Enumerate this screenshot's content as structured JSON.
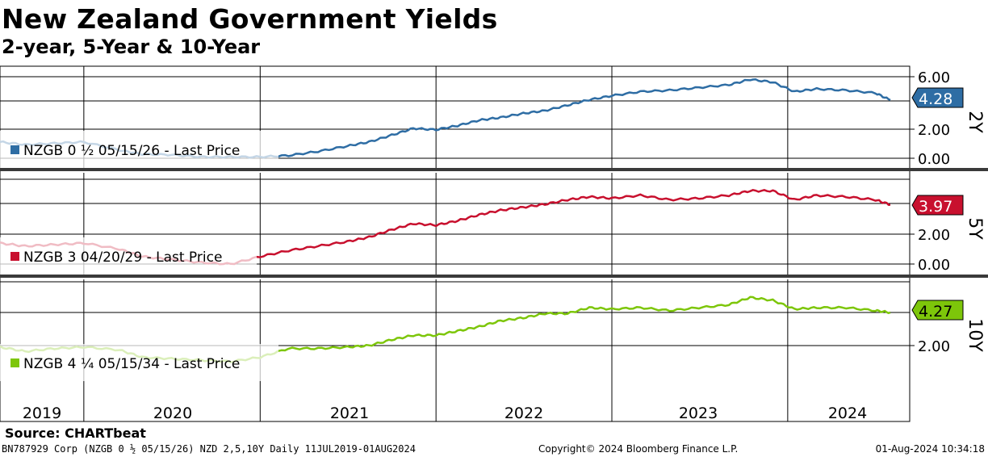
{
  "title": "New Zealand Government Yields",
  "subtitle": "2-year, 5-Year & 10-Year",
  "source": "Source: CHARTbeat",
  "footer": {
    "left": "BN787929 Corp (NZGB 0 ½ 05/15/26) NZD 2,5,10Y  Daily 11JUL2019-01AUG2024",
    "middle": "Copyright© 2024 Bloomberg Finance L.P.",
    "right": "01-Aug-2024 10:34:18"
  },
  "colors": {
    "y2": "#2e6da4",
    "y5": "#c8102e",
    "y10": "#7dc60a"
  },
  "chart_data": {
    "type": "line",
    "x_axis": {
      "labels": [
        "2019",
        "2020",
        "2021",
        "2022",
        "2023",
        "2024"
      ],
      "range": [
        "2019-07-11",
        "2024-08-01"
      ]
    },
    "panels": [
      {
        "id": "y2",
        "label": "2Y",
        "series": {
          "name": "NZGB 0 ½ 05/15/26 - Last Price",
          "last_value": "4.28",
          "x": [
            "2019-07-11",
            "2019-09-01",
            "2019-11-01",
            "2020-01-01",
            "2020-03-15",
            "2020-05-01",
            "2020-07-01",
            "2020-09-01",
            "2020-11-01",
            "2021-01-01",
            "2021-03-01",
            "2021-05-01",
            "2021-07-01",
            "2021-08-15",
            "2021-10-01",
            "2021-11-15",
            "2022-01-01",
            "2022-02-15",
            "2022-04-01",
            "2022-05-15",
            "2022-07-01",
            "2022-08-15",
            "2022-10-01",
            "2022-11-15",
            "2023-01-01",
            "2023-03-01",
            "2023-05-01",
            "2023-07-01",
            "2023-09-01",
            "2023-10-15",
            "2023-12-01",
            "2024-01-15",
            "2024-03-01",
            "2024-05-01",
            "2024-07-01",
            "2024-08-01"
          ],
          "y": [
            1.2,
            1.0,
            1.1,
            1.2,
            0.6,
            0.3,
            0.25,
            0.1,
            0.1,
            0.1,
            0.2,
            0.5,
            0.9,
            1.2,
            1.7,
            2.2,
            2.1,
            2.4,
            2.8,
            3.0,
            3.3,
            3.5,
            3.9,
            4.3,
            4.6,
            4.9,
            5.0,
            5.2,
            5.4,
            5.8,
            5.6,
            4.9,
            5.1,
            5.0,
            4.8,
            4.28
          ]
        },
        "ticks": [
          "6.00",
          "2.00",
          "0.00"
        ],
        "ylim": [
          -0.5,
          6.8
        ]
      },
      {
        "id": "y5",
        "label": "5Y",
        "series": {
          "name": "NZGB 3 04/20/29 - Last Price",
          "last_value": "3.97",
          "x": [
            "2019-07-11",
            "2019-09-01",
            "2019-11-01",
            "2020-01-01",
            "2020-03-15",
            "2020-05-01",
            "2020-07-01",
            "2020-09-01",
            "2020-11-01",
            "2021-01-01",
            "2021-03-01",
            "2021-05-01",
            "2021-07-01",
            "2021-08-15",
            "2021-10-01",
            "2021-11-15",
            "2022-01-01",
            "2022-02-15",
            "2022-04-01",
            "2022-05-15",
            "2022-07-01",
            "2022-08-15",
            "2022-10-01",
            "2022-11-15",
            "2023-01-01",
            "2023-03-01",
            "2023-05-01",
            "2023-07-01",
            "2023-09-01",
            "2023-10-15",
            "2023-12-01",
            "2024-01-15",
            "2024-03-01",
            "2024-05-01",
            "2024-07-01",
            "2024-08-01"
          ],
          "y": [
            1.4,
            1.2,
            1.3,
            1.4,
            1.0,
            0.5,
            0.3,
            0.1,
            0.0,
            0.5,
            0.9,
            1.2,
            1.5,
            1.8,
            2.3,
            2.7,
            2.6,
            2.9,
            3.3,
            3.6,
            3.8,
            4.0,
            4.3,
            4.5,
            4.4,
            4.6,
            4.3,
            4.4,
            4.6,
            4.9,
            4.9,
            4.3,
            4.6,
            4.5,
            4.3,
            3.97
          ]
        },
        "ticks": [
          "2.00",
          "0.00"
        ],
        "ylim": [
          -0.5,
          6.6
        ]
      },
      {
        "id": "y10",
        "label": "10Y",
        "series": {
          "name": "NZGB 4 ¼ 05/15/34 - Last Price",
          "last_value": "4.27",
          "x": [
            "2019-07-11",
            "2019-09-01",
            "2019-11-01",
            "2020-01-01",
            "2020-03-15",
            "2020-05-01",
            "2020-07-01",
            "2020-09-01",
            "2020-11-01",
            "2021-01-01",
            "2021-03-01",
            "2021-05-01",
            "2021-07-01",
            "2021-08-15",
            "2021-10-01",
            "2021-11-15",
            "2022-01-01",
            "2022-02-15",
            "2022-04-01",
            "2022-05-15",
            "2022-07-01",
            "2022-08-15",
            "2022-10-01",
            "2022-11-15",
            "2023-01-01",
            "2023-03-01",
            "2023-05-01",
            "2023-07-01",
            "2023-09-01",
            "2023-10-15",
            "2023-12-01",
            "2024-01-15",
            "2024-03-01",
            "2024-05-01",
            "2024-07-01",
            "2024-08-01"
          ],
          "y": [
            1.9,
            1.6,
            1.8,
            1.9,
            1.7,
            1.2,
            1.1,
            1.0,
            0.9,
            1.2,
            1.8,
            1.8,
            1.9,
            2.0,
            2.4,
            2.7,
            2.7,
            3.0,
            3.3,
            3.7,
            3.9,
            4.2,
            4.2,
            4.6,
            4.5,
            4.6,
            4.4,
            4.6,
            4.8,
            5.3,
            5.1,
            4.5,
            4.6,
            4.6,
            4.4,
            4.27
          ]
        },
        "ticks": [
          "2.00"
        ],
        "ylim": [
          0.2,
          6.2
        ]
      }
    ]
  }
}
